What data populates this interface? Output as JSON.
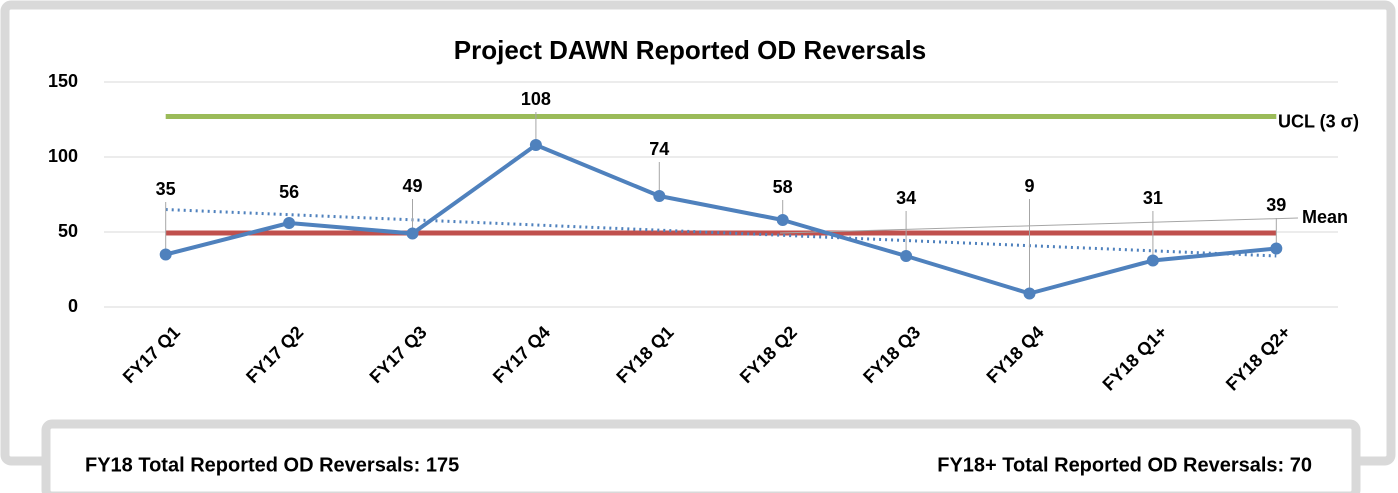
{
  "chart_data": {
    "type": "line",
    "title": "Project DAWN Reported OD Reversals",
    "categories": [
      "FY17 Q1",
      "FY17 Q2",
      "FY17 Q3",
      "FY17 Q4",
      "FY18 Q1",
      "FY18 Q2",
      "FY18 Q3",
      "FY18 Q4",
      "FY18 Q1+",
      "FY18 Q2+"
    ],
    "series": [
      {
        "name": "Reported OD Reversals",
        "color": "#4f81bd",
        "values": [
          35,
          56,
          49,
          108,
          74,
          58,
          34,
          9,
          31,
          39
        ]
      }
    ],
    "ucl": {
      "label": "UCL (3 σ)",
      "value": 127,
      "color": "#9bbb59"
    },
    "mean": {
      "label": "Mean",
      "value": 49.3,
      "color": "#c0504d"
    },
    "trendline": {
      "values": [
        65,
        34
      ],
      "color": "#4f81bd"
    },
    "ylim": [
      0,
      150
    ],
    "yticks": [
      0,
      50,
      100,
      150
    ],
    "grid": true,
    "footer": {
      "left": "FY18 Total Reported OD Reversals: 175",
      "right": "FY18+ Total Reported OD Reversals: 70"
    }
  }
}
